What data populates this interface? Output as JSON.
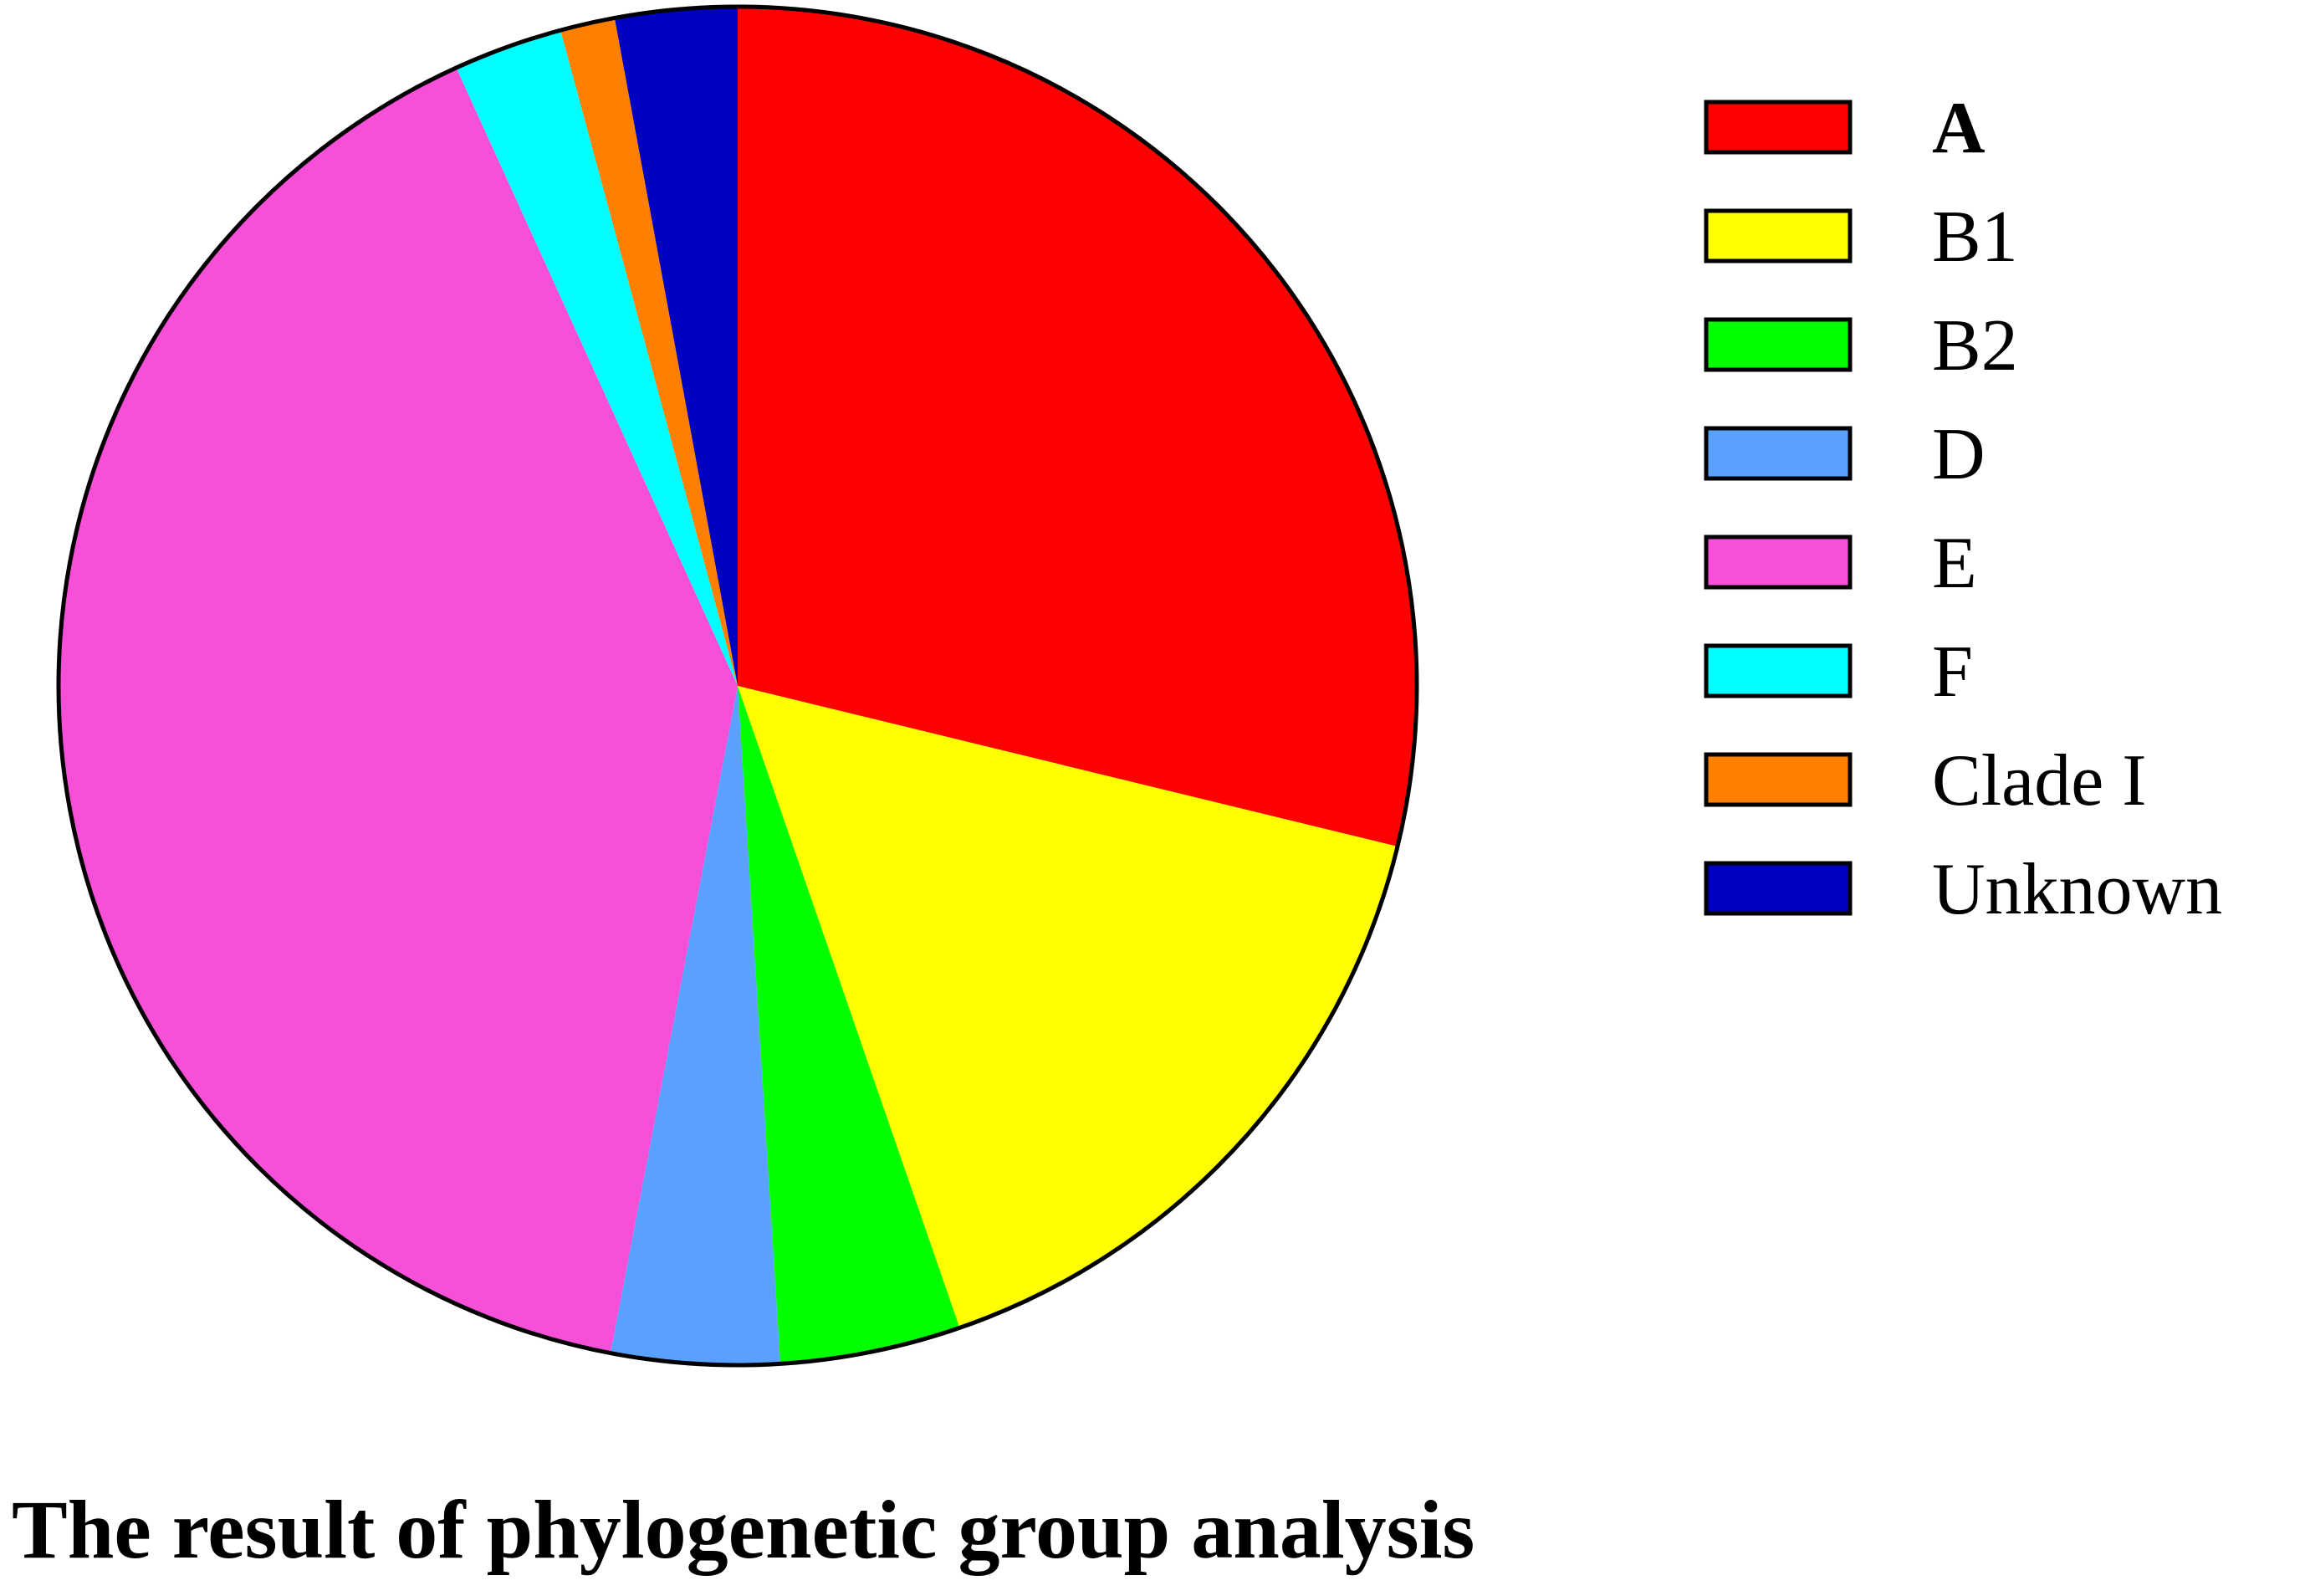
{
  "chart_data": {
    "type": "pie",
    "title": "The result of phylogenetic group analysis",
    "start_angle": "12 o'clock",
    "direction": "clockwise",
    "legend_position": "right",
    "slices": [
      {
        "label": "A",
        "value": 28.8,
        "color": "#ff0000",
        "bold": true
      },
      {
        "label": "B1",
        "value": 15.9,
        "color": "#ffff00"
      },
      {
        "label": "B2",
        "value": 4.3,
        "color": "#00ff00"
      },
      {
        "label": "D",
        "value": 4.0,
        "color": "#5aa0ff"
      },
      {
        "label": "E",
        "value": 40.2,
        "color": "#f74fd8"
      },
      {
        "label": "F",
        "value": 2.6,
        "color": "#00ffff"
      },
      {
        "label": "Clade I",
        "value": 1.3,
        "color": "#ff8000"
      },
      {
        "label": "Unknown",
        "value": 2.9,
        "color": "#0000bf"
      }
    ]
  }
}
